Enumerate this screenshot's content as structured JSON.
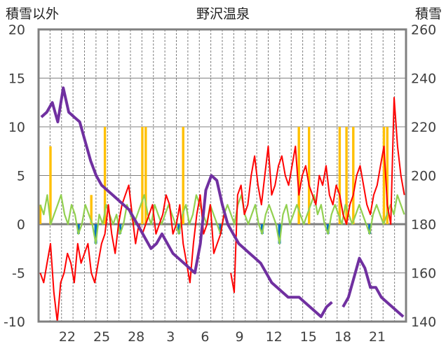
{
  "chart_data": {
    "type": "line",
    "title": "野沢温泉",
    "left_axis_label": "積雪以外",
    "right_axis_label": "積雪",
    "left_ylim": [
      -10,
      20
    ],
    "left_ticks": [
      "20",
      "15",
      "10",
      "5",
      "0",
      "-5",
      "-10"
    ],
    "right_ylim": [
      140,
      260
    ],
    "right_ticks": [
      "260",
      "240",
      "220",
      "200",
      "180",
      "160",
      "140"
    ],
    "x_ticks": [
      "22",
      "25",
      "28",
      "3",
      "6",
      "9",
      "12",
      "15",
      "18",
      "21"
    ],
    "x_tick_index": [
      2,
      5,
      8,
      11,
      14,
      17,
      20,
      23,
      26,
      29
    ],
    "day_count": 32,
    "grid": true,
    "colors": {
      "frame": "#808080",
      "grid": "#808080",
      "zero_line": "#7f7f7f",
      "precip": "#ffc000",
      "temp_max": "#ff0000",
      "temp_mean": "#92d050",
      "temp_neg": "#0070c0",
      "snow": "#7030a0"
    },
    "series": [
      {
        "key": "snow_depth",
        "axis": "right",
        "values": [
          224,
          226,
          230,
          222,
          236,
          226,
          224,
          222,
          214,
          206,
          200,
          196,
          194,
          192,
          190,
          188,
          186,
          182,
          178,
          174,
          170,
          172,
          176,
          172,
          168,
          166,
          164,
          162,
          160,
          172,
          194,
          200,
          198,
          188,
          180,
          176,
          172,
          170,
          168,
          166,
          164,
          160,
          156,
          154,
          152,
          150,
          150,
          150,
          148,
          146,
          144,
          142,
          146,
          148,
          null,
          146,
          150,
          158,
          166,
          162,
          154,
          154,
          150,
          148,
          146,
          144,
          142
        ]
      },
      {
        "key": "temp_max",
        "axis": "left",
        "values": [
          -5,
          -6,
          -4,
          -2,
          -7,
          -10,
          -6,
          -5,
          -3,
          -4,
          -6,
          -2,
          -4,
          -3,
          -2,
          -5,
          -6,
          -4,
          -2,
          -1,
          2,
          -1,
          -3,
          0,
          2,
          3,
          4,
          1,
          -2,
          0,
          -1,
          0,
          1,
          2,
          -1,
          0,
          1,
          3,
          2,
          -1,
          0,
          2,
          -2,
          -4,
          -6,
          -2,
          1,
          3,
          -1,
          0,
          2,
          -3,
          -2,
          -1,
          1,
          null,
          -5,
          -7,
          3,
          4,
          1,
          2,
          5,
          7,
          4,
          2,
          5,
          8,
          3,
          4,
          6,
          7,
          5,
          4,
          6,
          8,
          3,
          5,
          6,
          4,
          3,
          2,
          5,
          4,
          6,
          3,
          2,
          4,
          3,
          1,
          0,
          2,
          3,
          5,
          6,
          4,
          2,
          1,
          3,
          4,
          6,
          8,
          2,
          0,
          13,
          8,
          5,
          3
        ]
      },
      {
        "key": "temp_mean",
        "axis": "left",
        "values": [
          2,
          1,
          3,
          0,
          1,
          2,
          3,
          1,
          0,
          2,
          1,
          -1,
          0,
          2,
          1,
          0,
          -2,
          1,
          0,
          2,
          1,
          0,
          1,
          -1,
          0,
          2,
          1,
          0,
          1,
          2,
          3,
          1,
          0,
          2,
          1,
          0,
          1,
          2,
          1,
          0,
          -1,
          1,
          2,
          0,
          1,
          3,
          2,
          1,
          0,
          2,
          1,
          0,
          -1,
          1,
          2,
          1,
          0,
          2,
          3,
          1,
          0,
          1,
          2,
          0,
          -1,
          1,
          2,
          1,
          0,
          -2,
          1,
          2,
          0,
          1,
          2,
          1,
          0,
          1,
          2,
          3,
          1,
          2,
          0,
          -1,
          1,
          2,
          1,
          0,
          2,
          1,
          0,
          1,
          2,
          1,
          0,
          -1,
          1,
          2,
          1,
          0,
          1,
          2,
          1,
          3,
          2,
          1
        ]
      },
      {
        "key": "precipitation",
        "axis": "left",
        "values": [
          2,
          0,
          0,
          8,
          0,
          0,
          0,
          0,
          0,
          0,
          0,
          0,
          0,
          0,
          0,
          3,
          0,
          0,
          0,
          10,
          0,
          0,
          0,
          0,
          0,
          0,
          0,
          0,
          0,
          0,
          10,
          10,
          0,
          0,
          0,
          0,
          0,
          0,
          0,
          0,
          0,
          0,
          10,
          0,
          0,
          0,
          0,
          0,
          0,
          0,
          0,
          0,
          0,
          0,
          0,
          0,
          0,
          0,
          0,
          0,
          0,
          0,
          0,
          0,
          0,
          0,
          0,
          0,
          0,
          0,
          0,
          0,
          0,
          0,
          0,
          0,
          10,
          0,
          0,
          10,
          0,
          0,
          0,
          0,
          0,
          0,
          0,
          0,
          10,
          0,
          10,
          0,
          10,
          0,
          0,
          0,
          0,
          0,
          0,
          0,
          0,
          10,
          10,
          0,
          0,
          0,
          0,
          0
        ]
      }
    ]
  }
}
